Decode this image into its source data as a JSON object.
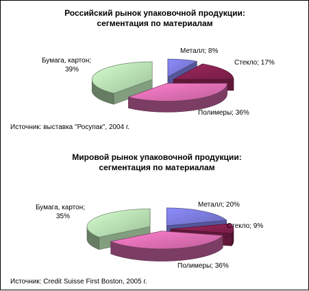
{
  "chart_data": [
    {
      "type": "pie",
      "title": [
        "Российский рынок упаковочной продукции:",
        "сегментация по материалам"
      ],
      "slices": [
        {
          "label": "Металл",
          "value": 8,
          "text": "Металл; 8%",
          "color": "#7b7bdc"
        },
        {
          "label": "Стекло",
          "value": 17,
          "text": "Стекло; 17%",
          "color": "#8a2252"
        },
        {
          "label": "Полимеры",
          "value": 36,
          "text": "Полимеры; 36%",
          "color": "#e06fb4"
        },
        {
          "label": "Бумага, картон",
          "value": 39,
          "text": [
            "Бумага, картон;",
            "39%"
          ],
          "color": "#b9e2b4"
        }
      ],
      "source": "Источник: выставка \"Росупак\", 2004 г."
    },
    {
      "type": "pie",
      "title": [
        "Мировой рынок упаковочной продукции:",
        "сегментация по материалам"
      ],
      "slices": [
        {
          "label": "Металл",
          "value": 20,
          "text": "Металл; 20%",
          "color": "#7b7bdc"
        },
        {
          "label": "Стекло",
          "value": 9,
          "text": "Стекло; 9%",
          "color": "#8a2252"
        },
        {
          "label": "Полимеры",
          "value": 36,
          "text": "Полимеры; 36%",
          "color": "#e06fb4"
        },
        {
          "label": "Бумага, картон",
          "value": 35,
          "text": [
            "Бумага, картон;",
            "35%"
          ],
          "color": "#b9e2b4"
        }
      ],
      "source": "Источник: Credit Suisse First Boston, 2005 г."
    }
  ]
}
